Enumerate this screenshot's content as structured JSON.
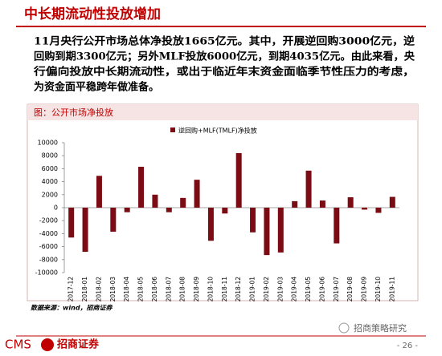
{
  "header": {
    "title": "中长期流动性投放增加"
  },
  "paragraph": [
    "11月央行公开市场总体净投放1665亿元。其中，开展逆回购3000亿元，逆",
    "回购到期3300亿元；另外MLF投放6000亿元，到期4035亿元。由此来看，央",
    "行偏向投放中长期流动性，或出于临近年末资金面临季节性压力的考虑，",
    "为资金面平稳跨年做准备。"
  ],
  "chart_data": {
    "type": "bar",
    "title": "图：公开市场净投放",
    "categories": [
      "2017-12",
      "2018-01",
      "2018-02",
      "2018-03",
      "2018-04",
      "2018-05",
      "2018-06",
      "2018-07",
      "2018-08",
      "2018-09",
      "2018-10",
      "2018-11",
      "2018-12",
      "2019-01",
      "2019-02",
      "2019-03",
      "2019-04",
      "2019-05",
      "2019-06",
      "2019-07",
      "2019-08",
      "2019-09",
      "2019-10",
      "2019-11"
    ],
    "series": [
      {
        "name": "逆回购+MLF(TMLF)净投放",
        "color": "#7b0c14",
        "values": [
          -4600,
          -6800,
          4900,
          -3700,
          -700,
          6300,
          2000,
          -700,
          1500,
          4300,
          -5100,
          -900,
          8400,
          -3800,
          -7300,
          -6900,
          1000,
          5700,
          1100,
          -5500,
          1600,
          -300,
          -800,
          1665
        ]
      }
    ],
    "ylim": [
      -10000,
      10000
    ],
    "yticks": [
      -10000,
      -8000,
      -6000,
      -4000,
      -2000,
      0,
      2000,
      4000,
      6000,
      8000,
      10000
    ],
    "legend": "top",
    "grid": false
  },
  "source": "数据来源：wind，招商证券",
  "footer": {
    "logo": "CMS",
    "logo_name": "招商证券",
    "wechat": "招商策略研究",
    "page": "- 26 -"
  }
}
